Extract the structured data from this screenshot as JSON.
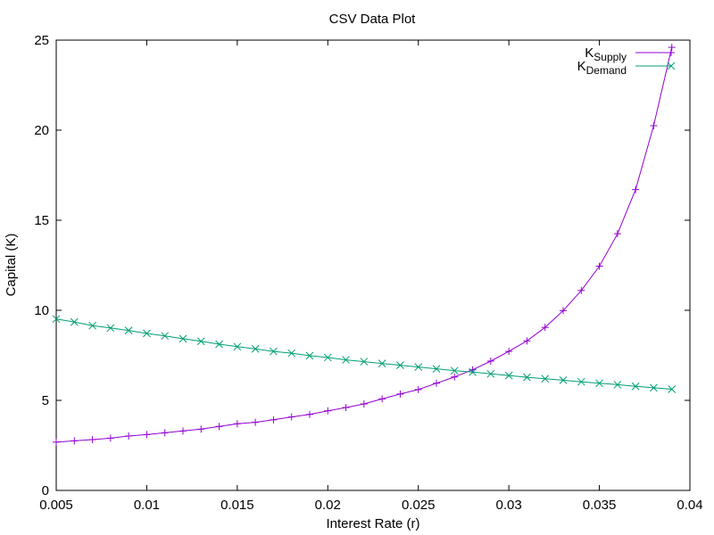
{
  "chart_data": {
    "type": "line",
    "title": "CSV Data Plot",
    "xlabel": "Interest Rate (r)",
    "ylabel": "Capital (K)",
    "xlim": [
      0.005,
      0.04
    ],
    "ylim": [
      0,
      25
    ],
    "x_ticks": [
      "0.005",
      "0.01",
      "0.015",
      "0.02",
      "0.025",
      "0.03",
      "0.035",
      "0.04"
    ],
    "y_ticks": [
      "0",
      "5",
      "10",
      "15",
      "20",
      "25"
    ],
    "grid": false,
    "legend_position": "top-right",
    "x": [
      0.005,
      0.006,
      0.007,
      0.008,
      0.009,
      0.01,
      0.011,
      0.012,
      0.013,
      0.014,
      0.015,
      0.016,
      0.017,
      0.018,
      0.019,
      0.02,
      0.021,
      0.022,
      0.023,
      0.024,
      0.025,
      0.026,
      0.027,
      0.028,
      0.029,
      0.03,
      0.031,
      0.032,
      0.033,
      0.034,
      0.035,
      0.036,
      0.037,
      0.038,
      0.039
    ],
    "series": [
      {
        "name": "K",
        "subscript": "Supply",
        "color": "#9400d3",
        "marker": "plus",
        "values": [
          2.68,
          2.75,
          2.82,
          2.9,
          3.02,
          3.1,
          3.2,
          3.3,
          3.4,
          3.55,
          3.7,
          3.78,
          3.92,
          4.08,
          4.22,
          4.42,
          4.6,
          4.8,
          5.08,
          5.35,
          5.6,
          5.95,
          6.3,
          6.7,
          7.18,
          7.72,
          8.3,
          9.05,
          9.98,
          11.1,
          12.45,
          14.25,
          16.7,
          20.25,
          24.6
        ]
      },
      {
        "name": "K",
        "subscript": "Demand",
        "color": "#009e73",
        "marker": "cross",
        "values": [
          9.52,
          9.35,
          9.15,
          9.02,
          8.88,
          8.72,
          8.58,
          8.42,
          8.28,
          8.12,
          7.98,
          7.86,
          7.72,
          7.62,
          7.48,
          7.38,
          7.25,
          7.15,
          7.05,
          6.95,
          6.85,
          6.75,
          6.65,
          6.57,
          6.47,
          6.38,
          6.28,
          6.2,
          6.12,
          6.03,
          5.95,
          5.87,
          5.78,
          5.7,
          5.62
        ]
      }
    ]
  }
}
